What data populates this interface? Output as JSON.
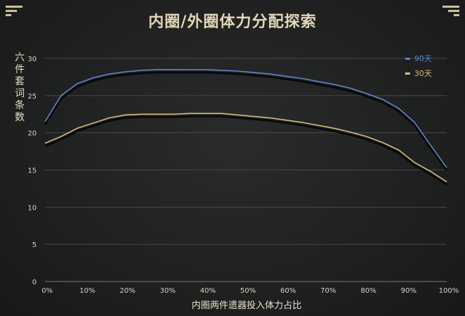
{
  "chart_data": {
    "type": "line",
    "title": "内圈/外圈体力分配探索",
    "xlabel": "内圈两件遗器投入体力占比",
    "ylabel": "六件套词条数",
    "x": [
      0,
      4,
      8,
      12,
      16,
      20,
      24,
      28,
      32,
      36,
      40,
      44,
      48,
      52,
      56,
      60,
      64,
      68,
      72,
      76,
      80,
      84,
      88,
      92,
      96,
      100
    ],
    "x_ticks": [
      "0%",
      "10%",
      "20%",
      "30%",
      "40%",
      "50%",
      "60%",
      "70%",
      "80%",
      "90%",
      "100%"
    ],
    "y_ticks": [
      "0",
      "5",
      "10",
      "15",
      "20",
      "25",
      "30"
    ],
    "xlim": [
      0,
      100
    ],
    "ylim": [
      0,
      30
    ],
    "grid": true,
    "legend_position": "top-right",
    "series": [
      {
        "name": "90天",
        "color": "#5b86cf",
        "values": [
          21.5,
          25.0,
          26.6,
          27.4,
          27.9,
          28.2,
          28.4,
          28.5,
          28.5,
          28.5,
          28.5,
          28.4,
          28.3,
          28.1,
          27.9,
          27.6,
          27.3,
          26.9,
          26.5,
          26.0,
          25.3,
          24.5,
          23.3,
          21.4,
          18.3,
          15.3
        ]
      },
      {
        "name": "30天",
        "color": "#d8bb7a",
        "values": [
          18.6,
          19.5,
          20.6,
          21.3,
          22.0,
          22.4,
          22.5,
          22.5,
          22.5,
          22.6,
          22.6,
          22.6,
          22.4,
          22.2,
          22.0,
          21.7,
          21.4,
          21.0,
          20.6,
          20.1,
          19.5,
          18.7,
          17.7,
          16.0,
          14.8,
          13.4
        ]
      }
    ]
  }
}
